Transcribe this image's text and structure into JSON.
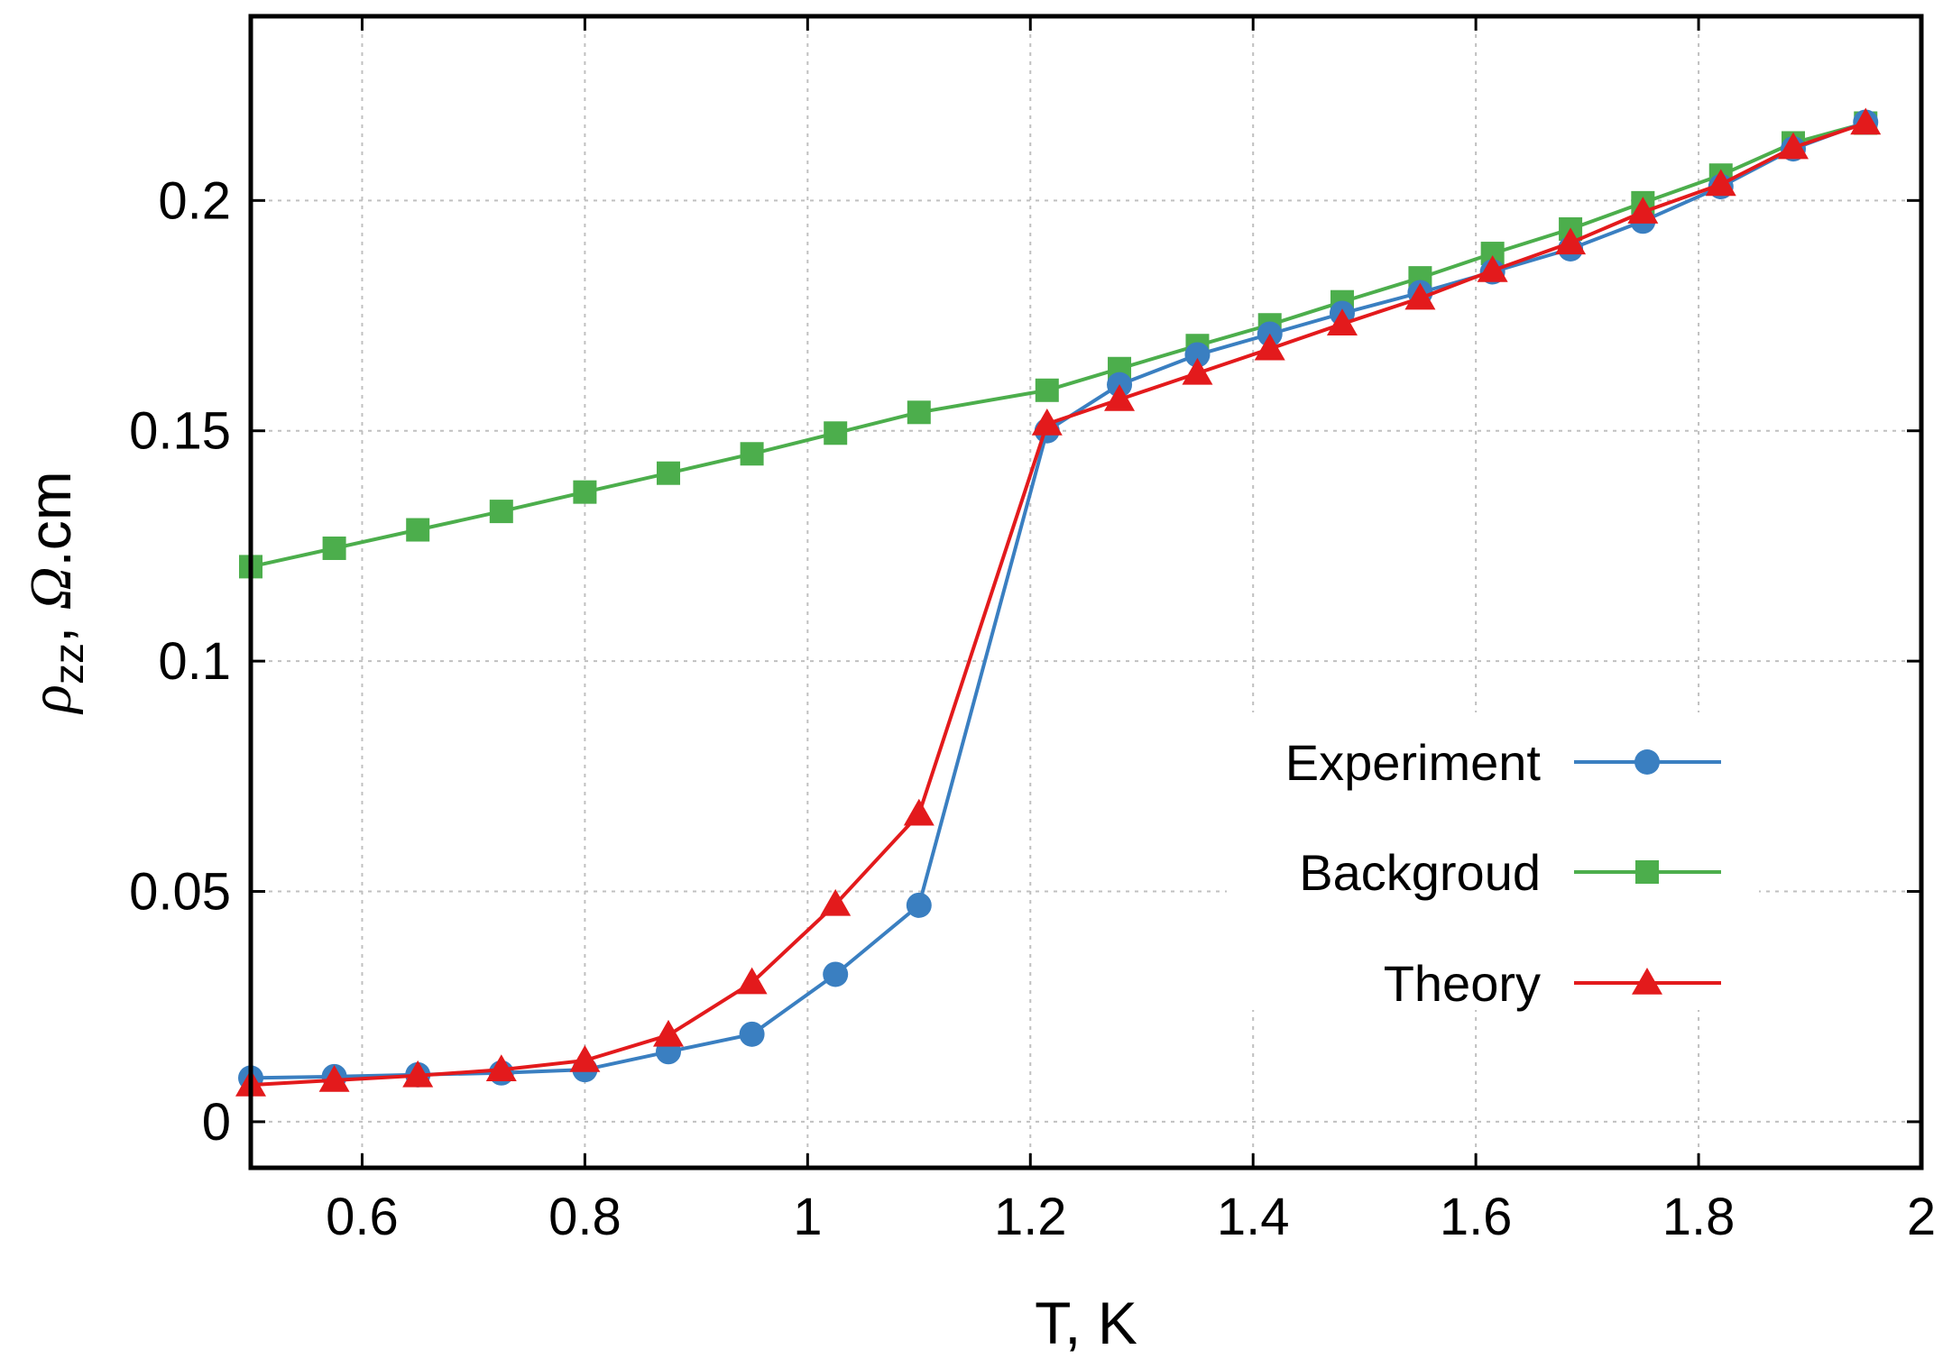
{
  "chart_data": {
    "type": "line",
    "title": "",
    "xlabel": "T, K",
    "ylabel": {
      "rho": "ρ",
      "sub": "zz",
      "rest": ", ",
      "omega": "Ω",
      "unit": ".cm"
    },
    "xlim": [
      0.5,
      2.0
    ],
    "ylim": [
      -0.01,
      0.24
    ],
    "xticks": [
      0.6,
      0.8,
      1.0,
      1.2,
      1.4,
      1.6,
      1.8,
      2.0
    ],
    "xtick_labels": [
      "0.6",
      "0.8",
      "1",
      "1.2",
      "1.4",
      "1.6",
      "1.8",
      "2"
    ],
    "yticks": [
      0,
      0.05,
      0.1,
      0.15,
      0.2
    ],
    "ytick_labels": [
      "0",
      "0.05",
      "0.1",
      "0.15",
      "0.2"
    ],
    "grid": true,
    "legend_position": "right",
    "series": [
      {
        "name": "Experiment",
        "color": "#3a7fc1",
        "marker": "circle",
        "x": [
          0.5,
          0.575,
          0.65,
          0.725,
          0.8,
          0.875,
          0.95,
          1.025,
          1.1,
          1.215,
          1.28,
          1.35,
          1.415,
          1.48,
          1.55,
          1.615,
          1.685,
          1.75,
          1.82,
          1.885,
          1.95
        ],
        "y": [
          0.0095,
          0.0098,
          0.0102,
          0.0106,
          0.0113,
          0.0152,
          0.019,
          0.032,
          0.047,
          0.15,
          0.16,
          0.1665,
          0.171,
          0.1755,
          0.18,
          0.1845,
          0.1895,
          0.1955,
          0.203,
          0.2112,
          0.217
        ]
      },
      {
        "name": "Backgroud",
        "color": "#4cae4c",
        "marker": "square",
        "x": [
          0.5,
          0.575,
          0.65,
          0.725,
          0.8,
          0.875,
          0.95,
          1.025,
          1.1,
          1.215,
          1.28,
          1.35,
          1.415,
          1.48,
          1.55,
          1.615,
          1.685,
          1.75,
          1.82,
          1.885,
          1.95
        ],
        "y": [
          0.1205,
          0.1245,
          0.1285,
          0.1325,
          0.1367,
          0.1408,
          0.145,
          0.1495,
          0.154,
          0.1588,
          0.1635,
          0.1685,
          0.173,
          0.178,
          0.1832,
          0.1885,
          0.1938,
          0.1995,
          0.2055,
          0.2125,
          0.2168
        ]
      },
      {
        "name": "Theory",
        "color": "#e31a1c",
        "marker": "triangle",
        "x": [
          0.5,
          0.575,
          0.65,
          0.725,
          0.8,
          0.875,
          0.95,
          1.025,
          1.1,
          1.215,
          1.28,
          1.35,
          1.415,
          1.48,
          1.55,
          1.615,
          1.685,
          1.75,
          1.82,
          1.885,
          1.95
        ],
        "y": [
          0.008,
          0.009,
          0.01,
          0.0113,
          0.0133,
          0.0188,
          0.0302,
          0.0472,
          0.0668,
          0.1515,
          0.1568,
          0.1625,
          0.1678,
          0.1732,
          0.1788,
          0.1848,
          0.1908,
          0.1975,
          0.2035,
          0.2115,
          0.2168
        ]
      }
    ]
  }
}
